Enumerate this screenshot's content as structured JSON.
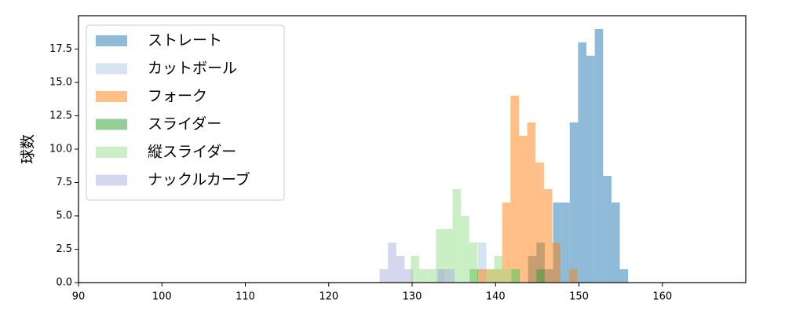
{
  "chart_data": {
    "type": "histogram",
    "ylabel": "球数",
    "legend": "upper-left",
    "opacity": 0.5,
    "xlim": [
      90,
      170
    ],
    "ylim": [
      0,
      20
    ],
    "xticks": [
      90,
      100,
      110,
      120,
      130,
      140,
      150,
      160
    ],
    "yticks": [
      {
        "value": 0,
        "label": "0.0"
      },
      {
        "value": 2.5,
        "label": "2.5"
      },
      {
        "value": 5,
        "label": "5.0"
      },
      {
        "value": 7.5,
        "label": "7.5"
      },
      {
        "value": 10,
        "label": "10.0"
      },
      {
        "value": 12.5,
        "label": "12.5"
      },
      {
        "value": 15,
        "label": "15.0"
      },
      {
        "value": 17.5,
        "label": "17.5"
      }
    ],
    "series": [
      {
        "name": "ストレート",
        "color": "#1f77b4",
        "bins": [
          143.9,
          144.9,
          145.9,
          146.9,
          147.9,
          148.9,
          149.9,
          150.9,
          151.9,
          152.9,
          153.9,
          154.9,
          155.9
        ],
        "values": [
          2,
          3,
          1,
          6,
          6,
          12,
          18,
          17,
          19,
          8,
          6,
          1
        ]
      },
      {
        "name": "カットボール",
        "color": "#aec7e8",
        "bins": [
          132.9,
          133.9,
          134.9,
          135.9,
          136.9,
          137.9,
          138.9
        ],
        "values": [
          1,
          0,
          0,
          0,
          0,
          3
        ]
      },
      {
        "name": "フォーク",
        "color": "#ff7f0e",
        "bins": [
          137.8,
          138.8,
          139.8,
          140.8,
          141.8,
          142.8,
          143.8,
          144.8,
          145.8,
          146.8,
          147.8,
          148.8,
          149.8
        ],
        "values": [
          1,
          1,
          1,
          6,
          14,
          11,
          12,
          9,
          7,
          3,
          0,
          1
        ]
      },
      {
        "name": "スライダー",
        "color": "#2ca02c",
        "bins": [
          136.9,
          137.9,
          138.9,
          139.9,
          140.9,
          141.9,
          142.9,
          143.9,
          144.9,
          145.9,
          146.9
        ],
        "values": [
          1,
          0,
          0,
          0,
          0,
          1,
          0,
          0,
          1,
          0
        ]
      },
      {
        "name": "縦スライダー",
        "color": "#98df8a",
        "bins": [
          129.85,
          130.85,
          131.85,
          132.85,
          133.85,
          134.85,
          135.85,
          136.85,
          137.85,
          138.85,
          139.85,
          140.85,
          141.85,
          142.85
        ],
        "values": [
          2,
          1,
          1,
          4,
          4,
          7,
          5,
          3,
          0,
          1,
          2,
          1,
          1
        ]
      },
      {
        "name": "ナックルカーブ",
        "color": "#aab0dc",
        "bins": [
          126.1,
          127.1,
          128.1,
          129.1,
          130.1,
          131.1,
          132.1,
          133.1,
          134.1,
          135.1
        ],
        "values": [
          1,
          3,
          2,
          1,
          0,
          0,
          0,
          1,
          1
        ]
      }
    ]
  }
}
